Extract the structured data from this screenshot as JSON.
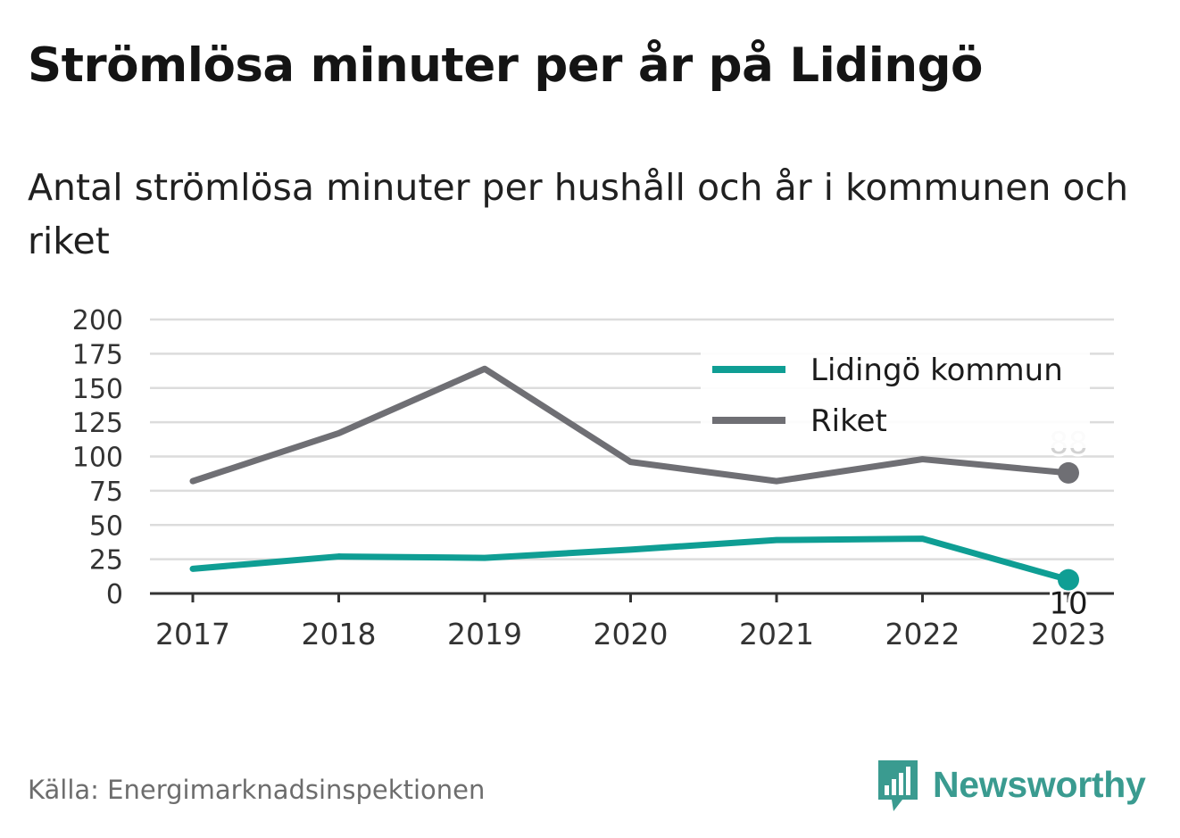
{
  "header": {
    "title": "Strömlösa minuter per år på Lidingö",
    "subtitle": "Antal strömlösa minuter per hushåll och år i kommunen och riket"
  },
  "footer": {
    "source": "Källa: Energimarknadsinspektionen",
    "brand": "Newsworthy",
    "brand_icon": "bar-chart-speech-bubble-icon"
  },
  "colors": {
    "lidingo": "#0f9e94",
    "riket": "#6f6f74",
    "grid": "#dcdcdc",
    "axis": "#333333",
    "brand": "#3a9b90"
  },
  "chart_data": {
    "type": "line",
    "x": [
      "2017",
      "2018",
      "2019",
      "2020",
      "2021",
      "2022",
      "2023"
    ],
    "ylim": [
      0,
      200
    ],
    "yticks": [
      "0",
      "25",
      "50",
      "75",
      "100",
      "125",
      "150",
      "175",
      "200"
    ],
    "grid": true,
    "legend_position": "top-right",
    "series": [
      {
        "name": "Lidingö kommun",
        "values": [
          18,
          27,
          26,
          32,
          39,
          40,
          10
        ],
        "end_label": "10"
      },
      {
        "name": "Riket",
        "values": [
          82,
          117,
          164,
          96,
          82,
          98,
          88
        ],
        "end_label": "88"
      }
    ]
  }
}
